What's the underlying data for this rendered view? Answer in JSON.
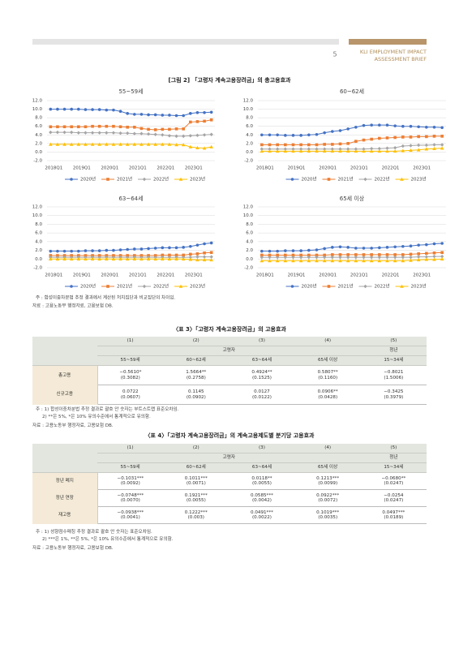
{
  "header": {
    "page": "5",
    "brand_lines": [
      "KLI EMPLOYMENT IMPACT",
      "ASSESSMENT BRIEF"
    ]
  },
  "figure": {
    "title": "[그림 2] 「고령자 계속고용장려금」의 총고용효과",
    "notes": [
      "주 : 합성이중차분법 추정 결과에서 계산된 처치집단과 비교집단의 차이임.",
      "자료 : 고용노동부 행정자료, 고용보험 DB."
    ]
  },
  "chart_data": [
    {
      "type": "line",
      "title": "55~59세",
      "categories": [
        "2018Q1",
        null,
        null,
        null,
        "2019Q1",
        null,
        null,
        null,
        "2020Q1",
        null,
        null,
        null,
        "2021Q1",
        null,
        null,
        null,
        "2022Q1",
        null,
        null,
        null,
        "2023Q1",
        null,
        null,
        null
      ],
      "ylim": [
        -2,
        12
      ],
      "yticks": [
        {
          "value": -2,
          "label": "-2.0"
        },
        {
          "value": 0,
          "label": "0.0"
        },
        {
          "value": 2,
          "label": "2.0"
        },
        {
          "value": 4,
          "label": "4.0"
        },
        {
          "value": 6,
          "label": "6.0"
        },
        {
          "value": 8,
          "label": "8.0"
        },
        {
          "value": 10,
          "label": "10.0"
        },
        {
          "value": 12,
          "label": "12.0"
        }
      ],
      "grid": true,
      "legend": "bottom",
      "series": [
        {
          "name": "2020년",
          "color": "#4472c4",
          "marker": "circle",
          "values": [
            10.0,
            10.0,
            10.0,
            10.0,
            10.0,
            9.9,
            9.9,
            9.9,
            9.8,
            9.8,
            9.5,
            9.0,
            8.8,
            8.8,
            8.7,
            8.7,
            8.6,
            8.6,
            8.5,
            8.5,
            9.0,
            9.2,
            9.2,
            9.3
          ]
        },
        {
          "name": "2021년",
          "color": "#ed7d31",
          "marker": "square",
          "values": [
            5.9,
            5.9,
            5.9,
            5.9,
            5.9,
            5.9,
            6.0,
            6.0,
            6.0,
            6.0,
            5.9,
            5.8,
            5.8,
            5.5,
            5.3,
            5.2,
            5.3,
            5.3,
            5.4,
            5.4,
            7.0,
            7.1,
            7.2,
            7.5
          ]
        },
        {
          "name": "2022년",
          "color": "#a5a5a5",
          "marker": "diamond",
          "values": [
            4.6,
            4.6,
            4.6,
            4.6,
            4.5,
            4.5,
            4.5,
            4.5,
            4.5,
            4.5,
            4.4,
            4.4,
            4.3,
            4.3,
            4.2,
            4.1,
            4.0,
            3.8,
            3.7,
            3.7,
            3.8,
            3.9,
            4.0,
            4.1
          ]
        },
        {
          "name": "2023년",
          "color": "#ffc000",
          "marker": "triangle",
          "values": [
            1.8,
            1.8,
            1.8,
            1.8,
            1.8,
            1.8,
            1.8,
            1.8,
            1.8,
            1.8,
            1.8,
            1.8,
            1.8,
            1.8,
            1.8,
            1.8,
            1.8,
            1.8,
            1.7,
            1.7,
            1.2,
            1.0,
            0.9,
            1.2
          ]
        }
      ]
    },
    {
      "type": "line",
      "title": "60~62세",
      "categories": [
        "2018Q1",
        null,
        null,
        null,
        "2019Q1",
        null,
        null,
        null,
        "2020Q1",
        null,
        null,
        null,
        "2021Q1",
        null,
        null,
        null,
        "2022Q1",
        null,
        null,
        null,
        "2023Q1",
        null,
        null,
        null
      ],
      "ylim": [
        -2,
        12
      ],
      "yticks": [
        {
          "value": -2,
          "label": "-2.0"
        },
        {
          "value": 0,
          "label": "0.0"
        },
        {
          "value": 2,
          "label": "2.0"
        },
        {
          "value": 4,
          "label": "4.0"
        },
        {
          "value": 6,
          "label": "6.0"
        },
        {
          "value": 8,
          "label": "8.0"
        },
        {
          "value": 10,
          "label": "10.0"
        },
        {
          "value": 12,
          "label": "12.0"
        }
      ],
      "grid": true,
      "legend": "bottom",
      "series": [
        {
          "name": "2020년",
          "color": "#4472c4",
          "marker": "circle",
          "values": [
            4.0,
            4.0,
            4.0,
            3.9,
            3.9,
            3.9,
            4.0,
            4.1,
            4.5,
            4.8,
            5.0,
            5.4,
            5.8,
            6.2,
            6.3,
            6.3,
            6.3,
            6.1,
            6.0,
            6.0,
            5.9,
            5.8,
            5.8,
            5.7
          ]
        },
        {
          "name": "2021년",
          "color": "#ed7d31",
          "marker": "square",
          "values": [
            1.7,
            1.7,
            1.7,
            1.7,
            1.7,
            1.7,
            1.7,
            1.7,
            1.8,
            1.8,
            1.9,
            2.0,
            2.5,
            2.8,
            3.0,
            3.2,
            3.3,
            3.4,
            3.5,
            3.5,
            3.6,
            3.6,
            3.7,
            3.7
          ]
        },
        {
          "name": "2022년",
          "color": "#a5a5a5",
          "marker": "diamond",
          "values": [
            0.7,
            0.7,
            0.7,
            0.7,
            0.7,
            0.7,
            0.7,
            0.7,
            0.7,
            0.7,
            0.7,
            0.7,
            0.7,
            0.7,
            0.8,
            0.8,
            0.9,
            1.0,
            1.4,
            1.5,
            1.6,
            1.6,
            1.7,
            1.7
          ]
        },
        {
          "name": "2023년",
          "color": "#ffc000",
          "marker": "triangle",
          "values": [
            0.2,
            0.2,
            0.2,
            0.2,
            0.2,
            0.2,
            0.2,
            0.2,
            0.2,
            0.2,
            0.2,
            0.2,
            0.2,
            0.2,
            0.2,
            0.2,
            0.2,
            0.2,
            0.3,
            0.4,
            0.5,
            0.7,
            0.8,
            0.9
          ]
        }
      ]
    },
    {
      "type": "line",
      "title": "63~64세",
      "categories": [
        "2018Q1",
        null,
        null,
        null,
        "2019Q1",
        null,
        null,
        null,
        "2020Q1",
        null,
        null,
        null,
        "2021Q1",
        null,
        null,
        null,
        "2022Q1",
        null,
        null,
        null,
        "2023Q1",
        null,
        null,
        null
      ],
      "ylim": [
        -2,
        12
      ],
      "yticks": [
        {
          "value": -2,
          "label": "-2.0"
        },
        {
          "value": 0,
          "label": "0.0"
        },
        {
          "value": 2,
          "label": "2.0"
        },
        {
          "value": 4,
          "label": "4.0"
        },
        {
          "value": 6,
          "label": "6.0"
        },
        {
          "value": 8,
          "label": "8.0"
        },
        {
          "value": 10,
          "label": "10.0"
        },
        {
          "value": 12,
          "label": "12.0"
        }
      ],
      "grid": true,
      "legend": "bottom",
      "series": [
        {
          "name": "2020년",
          "color": "#4472c4",
          "marker": "circle",
          "values": [
            1.8,
            1.8,
            1.8,
            1.8,
            1.8,
            1.9,
            1.9,
            1.9,
            2.0,
            2.0,
            2.1,
            2.2,
            2.3,
            2.3,
            2.4,
            2.5,
            2.6,
            2.6,
            2.6,
            2.7,
            2.9,
            3.2,
            3.5,
            3.7
          ]
        },
        {
          "name": "2021년",
          "color": "#ed7d31",
          "marker": "square",
          "values": [
            0.8,
            0.8,
            0.8,
            0.8,
            0.8,
            0.8,
            0.8,
            0.8,
            0.8,
            0.8,
            0.8,
            0.8,
            0.8,
            0.8,
            0.8,
            0.8,
            0.9,
            0.9,
            0.9,
            0.9,
            1.1,
            1.2,
            1.4,
            1.5
          ]
        },
        {
          "name": "2022년",
          "color": "#a5a5a5",
          "marker": "diamond",
          "values": [
            0.4,
            0.4,
            0.4,
            0.4,
            0.4,
            0.4,
            0.4,
            0.4,
            0.4,
            0.4,
            0.4,
            0.4,
            0.4,
            0.4,
            0.4,
            0.4,
            0.4,
            0.4,
            0.4,
            0.4,
            0.4,
            0.5,
            0.5,
            0.5
          ]
        },
        {
          "name": "2023년",
          "color": "#ffc000",
          "marker": "triangle",
          "values": [
            0.0,
            0.0,
            0.0,
            0.0,
            0.0,
            0.0,
            0.0,
            0.0,
            0.0,
            0.0,
            0.0,
            0.0,
            0.0,
            0.0,
            0.0,
            0.0,
            0.0,
            0.0,
            0.0,
            0.0,
            -0.1,
            -0.2,
            -0.2,
            -0.2
          ]
        }
      ]
    },
    {
      "type": "line",
      "title": "65세 이상",
      "categories": [
        "2018Q1",
        null,
        null,
        null,
        "2019Q1",
        null,
        null,
        null,
        "2020Q1",
        null,
        null,
        null,
        "2021Q1",
        null,
        null,
        null,
        "2022Q1",
        null,
        null,
        null,
        "2023Q1",
        null,
        null,
        null
      ],
      "ylim": [
        -2,
        12
      ],
      "yticks": [
        {
          "value": -2,
          "label": "-2.0"
        },
        {
          "value": 0,
          "label": "0.0"
        },
        {
          "value": 2,
          "label": "2.0"
        },
        {
          "value": 4,
          "label": "4.0"
        },
        {
          "value": 6,
          "label": "6.0"
        },
        {
          "value": 8,
          "label": "8.0"
        },
        {
          "value": 10,
          "label": "10.0"
        },
        {
          "value": 12,
          "label": "12.0"
        }
      ],
      "grid": true,
      "legend": "bottom",
      "series": [
        {
          "name": "2020년",
          "color": "#4472c4",
          "marker": "circle",
          "values": [
            1.8,
            1.8,
            1.8,
            1.9,
            1.9,
            1.9,
            2.0,
            2.1,
            2.4,
            2.7,
            2.8,
            2.7,
            2.5,
            2.5,
            2.5,
            2.6,
            2.7,
            2.8,
            2.9,
            3.0,
            3.2,
            3.3,
            3.5,
            3.6
          ]
        },
        {
          "name": "2021년",
          "color": "#ed7d31",
          "marker": "square",
          "values": [
            0.9,
            0.9,
            0.9,
            0.9,
            0.9,
            0.9,
            0.9,
            0.9,
            0.9,
            1.0,
            1.0,
            1.0,
            1.0,
            1.0,
            1.0,
            1.0,
            1.0,
            1.0,
            1.0,
            1.1,
            1.2,
            1.3,
            1.4,
            1.5
          ]
        },
        {
          "name": "2022년",
          "color": "#a5a5a5",
          "marker": "diamond",
          "values": [
            0.4,
            0.4,
            0.4,
            0.4,
            0.4,
            0.4,
            0.4,
            0.4,
            0.4,
            0.4,
            0.4,
            0.4,
            0.4,
            0.4,
            0.4,
            0.4,
            0.4,
            0.4,
            0.4,
            0.4,
            0.5,
            0.5,
            0.6,
            0.6
          ]
        },
        {
          "name": "2023년",
          "color": "#ffc000",
          "marker": "triangle",
          "values": [
            -0.4,
            -0.4,
            -0.4,
            -0.4,
            -0.4,
            -0.4,
            -0.4,
            -0.4,
            -0.4,
            -0.4,
            -0.4,
            -0.4,
            -0.4,
            -0.4,
            -0.4,
            -0.4,
            -0.4,
            -0.4,
            -0.4,
            -0.3,
            -0.2,
            -0.1,
            -0.1,
            0.0
          ]
        }
      ]
    }
  ],
  "table3": {
    "title": "〈표 3〉「고령자 계속고용장려금」의 고용효과",
    "col_numbers": [
      "(1)",
      "(2)",
      "(3)",
      "(4)",
      "(5)"
    ],
    "groups": [
      "고령자",
      "청년"
    ],
    "ages": [
      "55~59세",
      "60~62세",
      "63~64세",
      "65세 이상",
      "15~34세"
    ],
    "rows": [
      {
        "label": "총고용",
        "coef": [
          "−0.5610*",
          "1.5664**",
          "0.4924**",
          "0.5807**",
          "−0.8021"
        ],
        "se": [
          "(0.3082)",
          "(0.2758)",
          "(0.1525)",
          "(0.1160)",
          "(1.5006)"
        ]
      },
      {
        "label": "신규고용",
        "coef": [
          "0.0722",
          "0.1145",
          "0.0127",
          "0.0906**",
          "−0.3425"
        ],
        "se": [
          "(0.0607)",
          "(0.0902)",
          "(0.0122)",
          "(0.0428)",
          "(0.3979)"
        ]
      }
    ],
    "notes": [
      "주 : 1) 합성이중차분법 추정 결과로 괄호 안 숫자는 부트스트랩 표준오차임.",
      "2) **은 5%, *은 10% 유의수준에서 통계적으로 유의함.",
      "자료 : 고용노동부 행정자료, 고용보험 DB."
    ]
  },
  "table4": {
    "title": "〈표 4〉「고령자 계속고용장려금」의 계속고용제도별 분기당 고용효과",
    "col_numbers": [
      "(1)",
      "(2)",
      "(3)",
      "(4)",
      "(5)"
    ],
    "groups": [
      "고령자",
      "청년"
    ],
    "ages": [
      "55~59세",
      "60~62세",
      "63~64세",
      "65세 이상",
      "15~34세"
    ],
    "rows": [
      {
        "label": "정년 폐지",
        "coef": [
          "−0.1031***",
          "0.1011***",
          "0.0118**",
          "0.1213***",
          "−0.0680**"
        ],
        "se": [
          "(0.0092)",
          "(0.0071)",
          "(0.0055)",
          "(0.0099)",
          "(0.0247)"
        ]
      },
      {
        "label": "정년 연장",
        "coef": [
          "−0.0748***",
          "0.1921***",
          "0.0585***",
          "0.0922***",
          "−0.0254"
        ],
        "se": [
          "(0.0070)",
          "(0.0055)",
          "(0.0042)",
          "(0.0072)",
          "(0.0247)"
        ]
      },
      {
        "label": "재고용",
        "coef": [
          "−0.0938***",
          "0.1222***",
          "0.0491***",
          "0.1019***",
          "0.0497***"
        ],
        "se": [
          "(0.0041)",
          "(0.003)",
          "(0.0022)",
          "(0.0035)",
          "(0.0189)"
        ]
      }
    ],
    "notes": [
      "주 : 1) 성향점수매칭 추정 결과로 괄호 안 숫자는 표준오차임.",
      "2) ***은 1%, **은 5%, *은 10% 유의수준에서 통계적으로 유의함.",
      "자료 : 고용노동부 행정자료, 고용보험 DB."
    ]
  }
}
